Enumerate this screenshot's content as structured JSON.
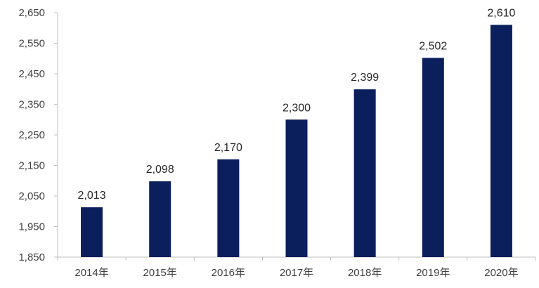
{
  "chart_data": {
    "type": "bar",
    "categories": [
      "2014年",
      "2015年",
      "2016年",
      "2017年",
      "2018年",
      "2019年",
      "2020年"
    ],
    "values": [
      2013,
      2098,
      2170,
      2300,
      2399,
      2502,
      2610
    ],
    "data_labels": [
      "2,013",
      "2,098",
      "2,170",
      "2,300",
      "2,399",
      "2,502",
      "2,610"
    ],
    "y_ticks": [
      1850,
      1950,
      2050,
      2150,
      2250,
      2350,
      2450,
      2550,
      2650
    ],
    "y_tick_labels": [
      "1,850",
      "1,950",
      "2,050",
      "2,150",
      "2,250",
      "2,350",
      "2,450",
      "2,550",
      "2,650"
    ],
    "ylim": [
      1850,
      2650
    ],
    "title": "",
    "xlabel": "",
    "ylabel": "",
    "grid": false,
    "bar_color": "#0b1f5c"
  }
}
